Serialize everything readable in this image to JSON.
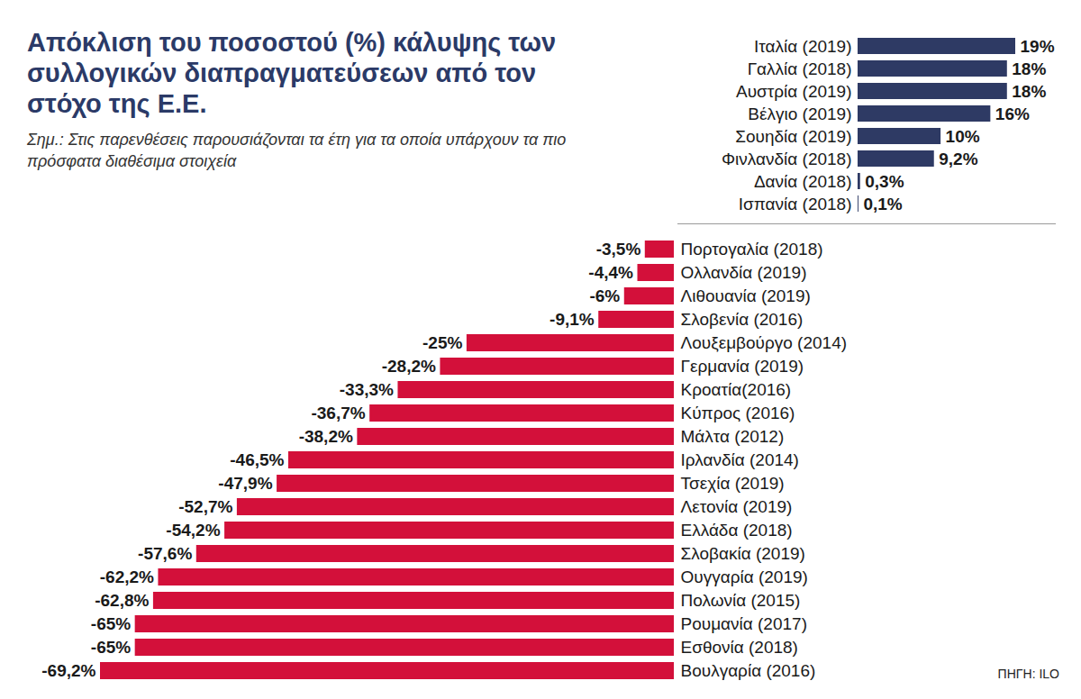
{
  "chart_data": [
    {
      "type": "bar",
      "title": "Απόκλιση του ποσοστού (%) κάλυψης των συλλογικών διαπραγματεύσεων από τον στόχο της Ε.Ε.",
      "subtitle": "Σημ.: Στις παρενθέσεις παρουσιάζονται τα έτη για τα οποία υπάρχουν τα πιο πρόσφατα διαθέσιμα στοιχεία",
      "orientation": "horizontal",
      "categories": [
        "Ιταλία (2019)",
        "Γαλλία (2018)",
        "Αυστρία (2019)",
        "Βέλγιο (2019)",
        "Σουηδία (2019)",
        "Φινλανδία (2018)",
        "Δανία (2018)",
        "Ισπανία (2018)"
      ],
      "values": [
        19,
        18,
        18,
        16,
        10,
        9.2,
        0.3,
        0.1
      ],
      "value_labels": [
        "19%",
        "18%",
        "18%",
        "16%",
        "10%",
        "9,2%",
        "0,3%",
        "0,1%"
      ],
      "color": "#2e3a64",
      "xlim": [
        0,
        19
      ],
      "data_labels": true,
      "tick_labels": "y"
    },
    {
      "type": "bar",
      "orientation": "horizontal",
      "categories": [
        "Πορτογαλία (2018)",
        "Ολλανδία (2019)",
        "Λιθουανία (2019)",
        "Σλοβενία (2016)",
        "Λουξεμβούργο (2014)",
        "Γερμανία (2019)",
        "Κροατία(2016)",
        "Κύπρος (2016)",
        "Μάλτα (2012)",
        "Ιρλανδία (2014)",
        "Τσεχία (2019)",
        "Λετονία (2019)",
        "Ελλάδα (2018)",
        "Σλοβακία (2019)",
        "Ουγγαρία (2019)",
        "Πολωνία (2015)",
        "Ρουμανία (2017)",
        "Εσθονία (2018)",
        "Βουλγαρία (2016)"
      ],
      "values": [
        -3.5,
        -4.4,
        -6,
        -9.1,
        -25,
        -28.2,
        -33.3,
        -36.7,
        -38.2,
        -46.5,
        -47.9,
        -52.7,
        -54.2,
        -57.6,
        -62.2,
        -62.8,
        -65,
        -65,
        -69.2
      ],
      "value_labels": [
        "-3,5%",
        "-4,4%",
        "-6%",
        "-9,1%",
        "-25%",
        "-28,2%",
        "-33,3%",
        "-36,7%",
        "-38,2%",
        "-46,5%",
        "-47,9%",
        "-52,7%",
        "-54,2%",
        "-57,6%",
        "-62,2%",
        "-62,8%",
        "-65%",
        "-65%",
        "-69,2%"
      ],
      "color": "#d3103a",
      "xlim": [
        -69.2,
        0
      ],
      "data_labels": true,
      "tick_labels": "y",
      "annotations": [
        "ΠΗΓΗ: ILO"
      ]
    }
  ]
}
